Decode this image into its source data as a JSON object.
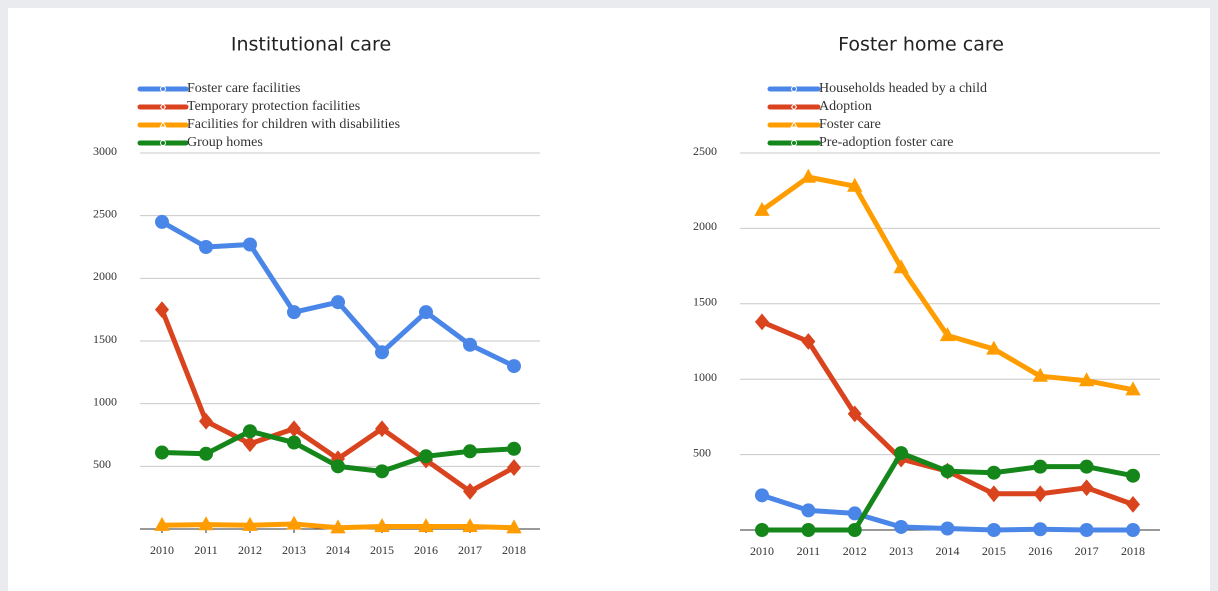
{
  "chart_data": [
    {
      "type": "line",
      "title": "Institutional care",
      "categories": [
        "2010",
        "2011",
        "2012",
        "2013",
        "2014",
        "2015",
        "2016",
        "2017",
        "2018"
      ],
      "series": [
        {
          "name": "Foster care facilities",
          "color": "#4a86e8",
          "marker": "circle",
          "values": [
            2450,
            2250,
            2270,
            1730,
            1810,
            1410,
            1730,
            1470,
            1300
          ]
        },
        {
          "name": "Temporary protection facilities",
          "color": "#d9431e",
          "marker": "diamond",
          "values": [
            1750,
            860,
            680,
            800,
            560,
            800,
            550,
            300,
            490
          ]
        },
        {
          "name": "Facilities for children with disabilities",
          "color": "#ff9d00",
          "marker": "triangle",
          "values": [
            30,
            35,
            30,
            40,
            10,
            20,
            20,
            20,
            10
          ]
        },
        {
          "name": "Group homes",
          "color": "#14861a",
          "marker": "circle",
          "values": [
            610,
            600,
            780,
            690,
            500,
            460,
            580,
            620,
            640
          ]
        }
      ],
      "ylim": [
        0,
        3000
      ],
      "yticks": [
        500,
        1000,
        1500,
        2000,
        2500,
        3000
      ],
      "grid": true,
      "legend": "top-left"
    },
    {
      "type": "line",
      "title": "Foster home care",
      "categories": [
        "2010",
        "2011",
        "2012",
        "2013",
        "2014",
        "2015",
        "2016",
        "2017",
        "2018"
      ],
      "series": [
        {
          "name": "Households headed by a child",
          "color": "#4a86e8",
          "marker": "circle",
          "values": [
            230,
            130,
            110,
            20,
            10,
            0,
            5,
            0,
            0
          ]
        },
        {
          "name": "Adoption",
          "color": "#d9431e",
          "marker": "diamond",
          "values": [
            1380,
            1250,
            770,
            470,
            390,
            240,
            240,
            280,
            170
          ]
        },
        {
          "name": "Foster care",
          "color": "#ff9d00",
          "marker": "triangle",
          "values": [
            2120,
            2340,
            2280,
            1740,
            1290,
            1200,
            1020,
            990,
            930
          ]
        },
        {
          "name": "Pre-adoption foster care",
          "color": "#14861a",
          "marker": "circle",
          "values": [
            0,
            0,
            0,
            510,
            390,
            380,
            420,
            420,
            360
          ]
        }
      ],
      "ylim": [
        0,
        2500
      ],
      "yticks": [
        500,
        1000,
        1500,
        2000,
        2500
      ],
      "grid": true,
      "legend": "top-left"
    }
  ]
}
